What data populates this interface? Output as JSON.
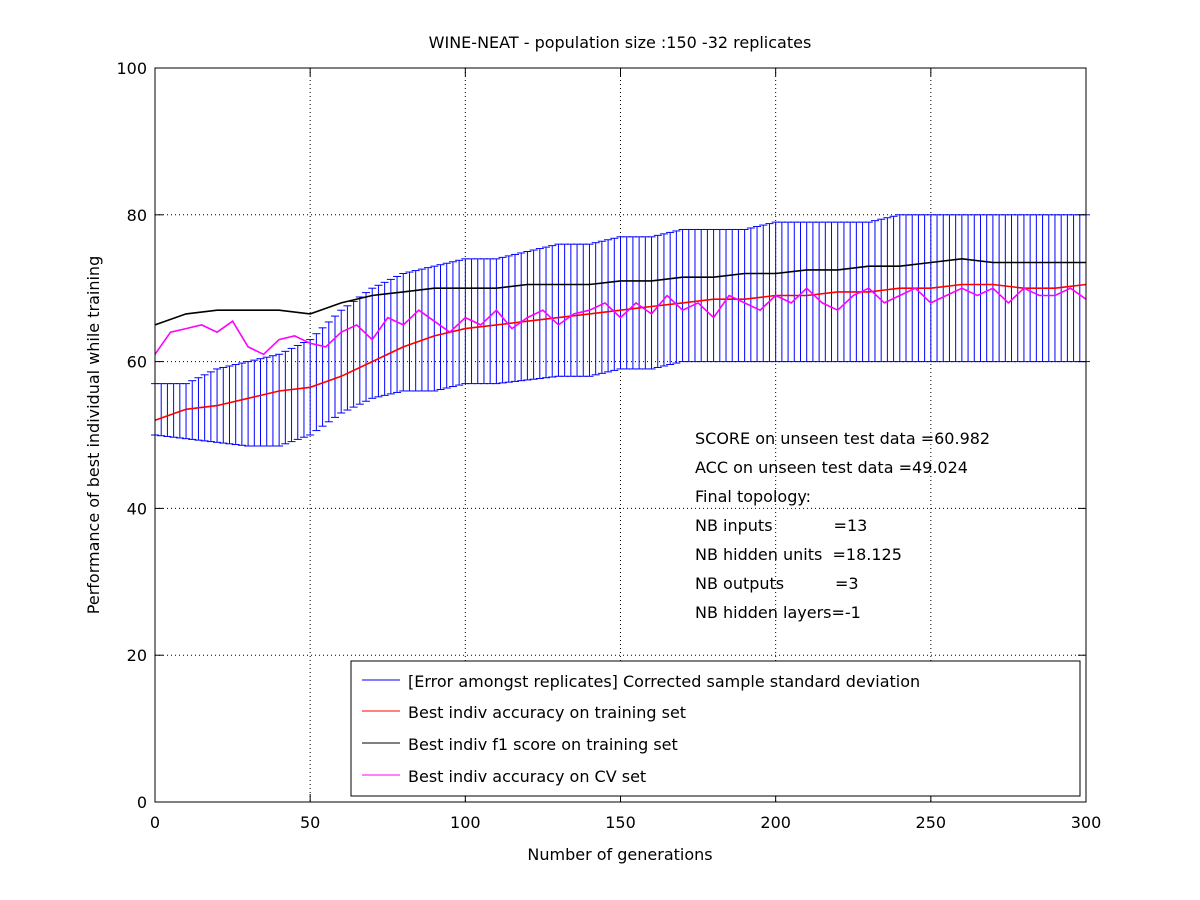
{
  "chart_data": {
    "type": "line",
    "title": "WINE-NEAT - population size :150 -32 replicates",
    "xlabel": "Number of generations",
    "ylabel": "Performance of best individual while training",
    "xlim": [
      0,
      300
    ],
    "ylim": [
      0,
      100
    ],
    "x_ticks": [
      0,
      50,
      100,
      150,
      200,
      250,
      300
    ],
    "y_ticks": [
      0,
      20,
      40,
      60,
      80,
      100
    ],
    "grid": true,
    "legend_position": "bottom-right",
    "series": [
      {
        "name": "[Error amongst replicates] Corrected sample standard deviation",
        "kind": "errorbar",
        "color": "#0000ff",
        "x": [
          0,
          10,
          20,
          30,
          40,
          50,
          60,
          70,
          80,
          90,
          100,
          110,
          120,
          130,
          140,
          150,
          160,
          170,
          180,
          190,
          200,
          210,
          220,
          230,
          240,
          250,
          260,
          270,
          280,
          290,
          300
        ],
        "upper": [
          57,
          57,
          59,
          60,
          61,
          63,
          67,
          70,
          72,
          73,
          74,
          74,
          75,
          76,
          76,
          77,
          77,
          78,
          78,
          78,
          79,
          79,
          79,
          79,
          80,
          80,
          80,
          80,
          80,
          80,
          80
        ],
        "lower": [
          50,
          49.5,
          49,
          48.5,
          48.5,
          50,
          53,
          55,
          56,
          56,
          57,
          57,
          57.5,
          58,
          58,
          59,
          59,
          60,
          60,
          60,
          60,
          60,
          60,
          60,
          60,
          60,
          60,
          60,
          60,
          60,
          60
        ]
      },
      {
        "name": "Best indiv accuracy on training set",
        "color": "#ff0000",
        "x": [
          0,
          10,
          20,
          30,
          40,
          50,
          60,
          70,
          80,
          90,
          100,
          110,
          120,
          130,
          140,
          150,
          160,
          170,
          180,
          190,
          200,
          210,
          220,
          230,
          240,
          250,
          260,
          270,
          280,
          290,
          300
        ],
        "values": [
          52,
          53.5,
          54,
          55,
          56,
          56.5,
          58,
          60,
          62,
          63.5,
          64.5,
          65,
          65.5,
          66,
          66.5,
          67,
          67.5,
          68,
          68.5,
          68.5,
          69,
          69,
          69.5,
          69.5,
          70,
          70,
          70.5,
          70.5,
          70,
          70,
          70.5
        ]
      },
      {
        "name": "Best indiv f1 score on training set",
        "color": "#000000",
        "x": [
          0,
          10,
          20,
          30,
          40,
          50,
          60,
          70,
          80,
          90,
          100,
          110,
          120,
          130,
          140,
          150,
          160,
          170,
          180,
          190,
          200,
          210,
          220,
          230,
          240,
          250,
          260,
          270,
          280,
          290,
          300
        ],
        "values": [
          65,
          66.5,
          67,
          67,
          67,
          66.5,
          68,
          69,
          69.5,
          70,
          70,
          70,
          70.5,
          70.5,
          70.5,
          71,
          71,
          71.5,
          71.5,
          72,
          72,
          72.5,
          72.5,
          73,
          73,
          73.5,
          74,
          73.5,
          73.5,
          73.5,
          73.5
        ]
      },
      {
        "name": "Best indiv accuracy on CV set",
        "color": "#ff00ff",
        "x": [
          0,
          5,
          10,
          15,
          20,
          25,
          30,
          35,
          40,
          45,
          50,
          55,
          60,
          65,
          70,
          75,
          80,
          85,
          90,
          95,
          100,
          105,
          110,
          115,
          120,
          125,
          130,
          135,
          140,
          145,
          150,
          155,
          160,
          165,
          170,
          175,
          180,
          185,
          190,
          195,
          200,
          205,
          210,
          215,
          220,
          225,
          230,
          235,
          240,
          245,
          250,
          255,
          260,
          265,
          270,
          275,
          280,
          285,
          290,
          295,
          300
        ],
        "values": [
          61,
          64,
          64.5,
          65,
          64,
          65.5,
          62,
          61,
          63,
          63.5,
          62.5,
          62,
          64,
          65,
          63,
          66,
          65,
          67,
          65.5,
          64,
          66,
          65,
          67,
          64.5,
          66,
          67,
          65,
          66.5,
          67,
          68,
          66,
          68,
          66.5,
          69,
          67,
          68,
          66,
          69,
          68,
          67,
          69,
          68,
          70,
          68,
          67,
          69,
          70,
          68,
          69,
          70,
          68,
          69,
          70,
          69,
          70,
          68,
          70,
          69,
          69,
          70,
          68.5
        ]
      }
    ],
    "annotations": [
      "SCORE on unseen test data =60.982",
      "ACC on unseen test data =49.024",
      "Final topology:",
      "NB inputs            =13",
      "NB hidden units  =18.125",
      "NB outputs          =3",
      "NB hidden layers=-1"
    ]
  }
}
